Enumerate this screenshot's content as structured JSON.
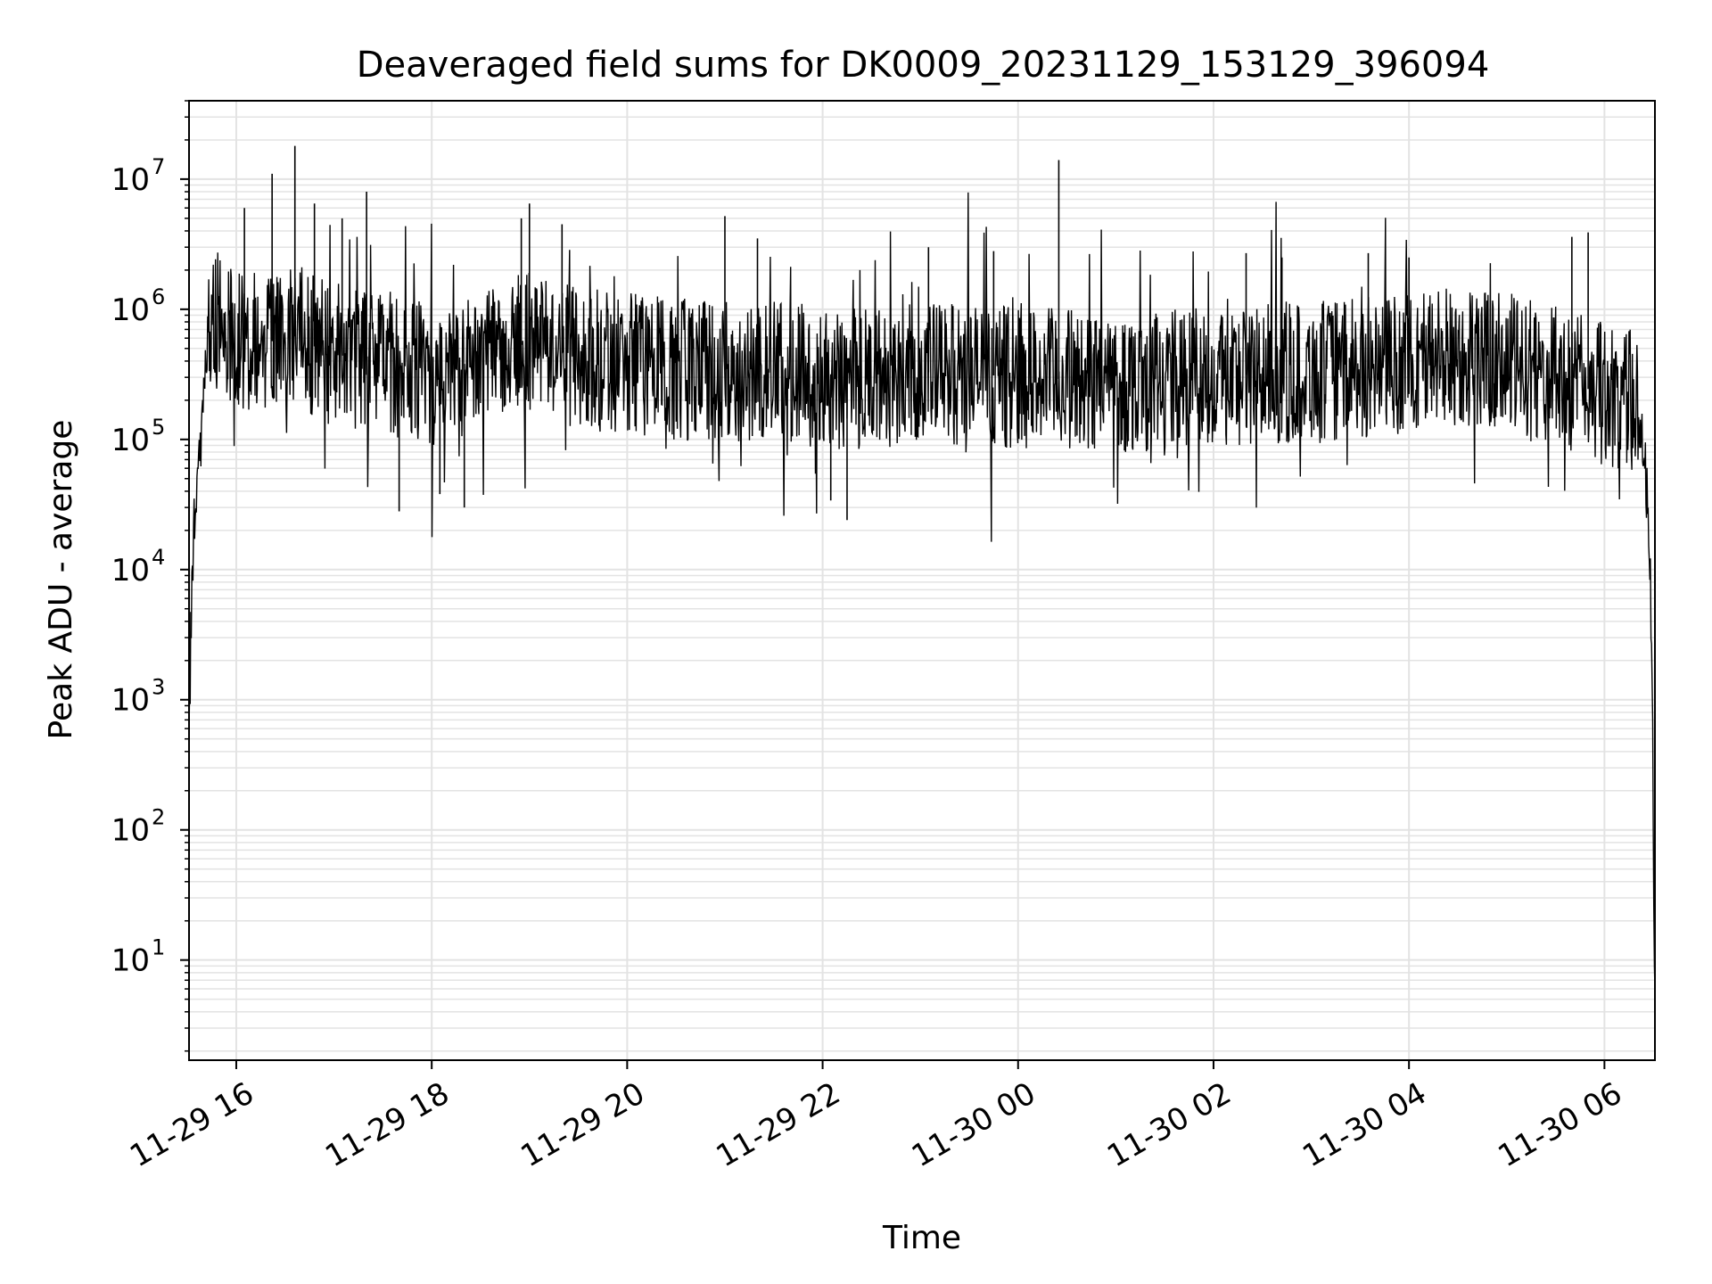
{
  "chart_data": {
    "type": "line",
    "title": "Deaveraged field sums for DK0009_20231129_153129_396094",
    "xlabel": "Time",
    "ylabel": "Peak ADU - average",
    "yscale": "log",
    "ylim": [
      1.7,
      40000000
    ],
    "xlim": [
      "2023-11-29 15:31",
      "2023-11-30 06:31"
    ],
    "grid": true,
    "line_color": "#000000",
    "grid_color": "#e3e3e3",
    "x_ticks": [
      {
        "value": "2023-11-29 16:00",
        "label": "11-29 16"
      },
      {
        "value": "2023-11-29 18:00",
        "label": "11-29 18"
      },
      {
        "value": "2023-11-29 20:00",
        "label": "11-29 20"
      },
      {
        "value": "2023-11-29 22:00",
        "label": "11-29 22"
      },
      {
        "value": "2023-11-30 00:00",
        "label": "11-30 00"
      },
      {
        "value": "2023-11-30 02:00",
        "label": "11-30 02"
      },
      {
        "value": "2023-11-30 04:00",
        "label": "11-30 04"
      },
      {
        "value": "2023-11-30 06:00",
        "label": "11-30 06"
      }
    ],
    "y_ticks": [
      {
        "value": 10,
        "base": "10",
        "exp": "1"
      },
      {
        "value": 100,
        "base": "10",
        "exp": "2"
      },
      {
        "value": 1000,
        "base": "10",
        "exp": "3"
      },
      {
        "value": 10000,
        "base": "10",
        "exp": "4"
      },
      {
        "value": 100000,
        "base": "10",
        "exp": "5"
      },
      {
        "value": 1000000,
        "base": "10",
        "exp": "6"
      },
      {
        "value": 10000000,
        "base": "10",
        "exp": "7"
      }
    ],
    "series": [
      {
        "x": [
          "2023-11-29 15:31",
          "2023-11-29 15:32",
          "2023-11-29 15:34",
          "2023-11-29 15:36",
          "2023-11-29 15:38",
          "2023-11-29 15:40",
          "2023-11-29 15:43",
          "2023-11-29 15:46",
          "2023-11-29 15:50",
          "2023-11-29 15:54",
          "2023-11-29 16:00",
          "2023-11-29 16:10",
          "2023-11-29 16:20",
          "2023-11-29 16:30",
          "2023-11-29 16:40",
          "2023-11-29 16:50",
          "2023-11-29 17:00",
          "2023-11-29 17:15",
          "2023-11-29 17:30",
          "2023-11-29 17:45",
          "2023-11-29 18:00",
          "2023-11-29 18:15",
          "2023-11-29 18:30",
          "2023-11-29 18:45",
          "2023-11-29 19:00",
          "2023-11-29 19:15",
          "2023-11-29 19:30",
          "2023-11-29 19:45",
          "2023-11-29 20:00",
          "2023-11-29 20:30",
          "2023-11-29 21:00",
          "2023-11-29 21:30",
          "2023-11-29 22:00",
          "2023-11-29 22:15",
          "2023-11-29 22:30",
          "2023-11-29 23:00",
          "2023-11-29 23:30",
          "2023-11-30 00:00",
          "2023-11-30 00:30",
          "2023-11-30 01:00",
          "2023-11-30 01:30",
          "2023-11-30 02:00",
          "2023-11-30 02:30",
          "2023-11-30 03:00",
          "2023-11-30 03:30",
          "2023-11-30 04:00",
          "2023-11-30 04:30",
          "2023-11-30 05:00",
          "2023-11-30 05:30",
          "2023-11-30 06:00",
          "2023-11-30 06:15",
          "2023-11-30 06:20",
          "2023-11-30 06:24",
          "2023-11-30 06:27",
          "2023-11-30 06:29",
          "2023-11-30 06:31"
        ],
        "y": [
          400,
          3000,
          20000,
          60000,
          80000,
          300000,
          700000,
          900000,
          800000,
          700000,
          600000,
          600000,
          550000,
          650000,
          600000,
          500000,
          450000,
          420000,
          380000,
          350000,
          300000,
          350000,
          450000,
          500000,
          550000,
          480000,
          420000,
          400000,
          380000,
          350000,
          340000,
          330000,
          300000,
          280000,
          300000,
          330000,
          320000,
          300000,
          290000,
          280000,
          290000,
          300000,
          320000,
          330000,
          340000,
          400000,
          450000,
          380000,
          300000,
          220000,
          200000,
          180000,
          80000,
          30000,
          3000,
          4
        ]
      }
    ],
    "peaks": [
      {
        "x": "2023-11-29 16:36",
        "y": 18000000
      },
      {
        "x": "2023-11-29 16:22",
        "y": 11000000
      },
      {
        "x": "2023-11-29 16:05",
        "y": 6000000
      },
      {
        "x": "2023-11-29 16:48",
        "y": 6500000
      },
      {
        "x": "2023-11-29 17:20",
        "y": 8000000
      },
      {
        "x": "2023-11-29 17:05",
        "y": 5000000
      },
      {
        "x": "2023-11-29 19:00",
        "y": 6500000
      },
      {
        "x": "2023-11-29 18:55",
        "y": 5000000
      },
      {
        "x": "2023-11-29 19:20",
        "y": 4500000
      },
      {
        "x": "2023-11-29 21:00",
        "y": 5200000
      },
      {
        "x": "2023-11-29 21:20",
        "y": 3500000
      },
      {
        "x": "2023-11-29 23:05",
        "y": 3000000
      },
      {
        "x": "2023-11-30 00:25",
        "y": 14000000
      },
      {
        "x": "2023-11-29 23:45",
        "y": 2800000
      },
      {
        "x": "2023-11-30 02:20",
        "y": 2700000
      },
      {
        "x": "2023-11-30 02:42",
        "y": 2500000
      },
      {
        "x": "2023-11-30 03:35",
        "y": 2700000
      },
      {
        "x": "2023-11-30 04:00",
        "y": 2500000
      },
      {
        "x": "2023-11-30 05:40",
        "y": 3600000
      },
      {
        "x": "2023-11-30 05:50",
        "y": 3900000
      }
    ],
    "troughs": [
      {
        "x": "2023-11-29 17:40",
        "y": 28000
      },
      {
        "x": "2023-11-29 18:20",
        "y": 30000
      },
      {
        "x": "2023-11-29 22:15",
        "y": 24000
      },
      {
        "x": "2023-11-29 22:05",
        "y": 34000
      },
      {
        "x": "2023-11-29 18:05",
        "y": 38000
      }
    ]
  }
}
